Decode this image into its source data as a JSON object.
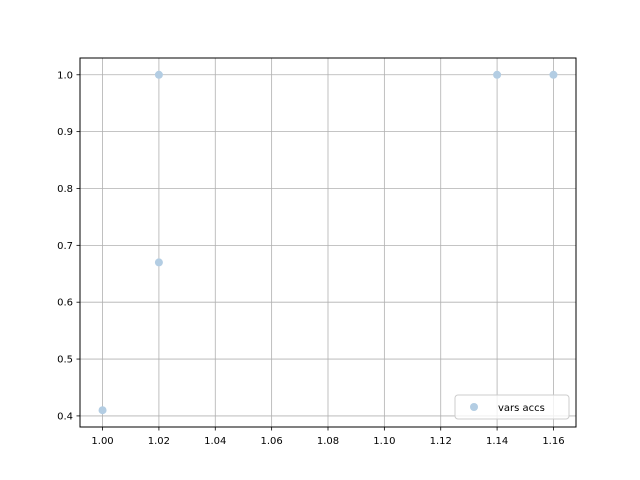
{
  "chart_data": {
    "type": "scatter",
    "title": "",
    "xlabel": "",
    "ylabel": "",
    "xlim": [
      0.992,
      1.168
    ],
    "ylim": [
      0.3805,
      1.0295
    ],
    "xticks": [
      "1.00",
      "1.02",
      "1.04",
      "1.06",
      "1.08",
      "1.10",
      "1.12",
      "1.14",
      "1.16"
    ],
    "xtick_values": [
      1.0,
      1.02,
      1.04,
      1.06,
      1.08,
      1.1,
      1.12,
      1.14,
      1.16
    ],
    "yticks": [
      "0.4",
      "0.5",
      "0.6",
      "0.7",
      "0.8",
      "0.9",
      "1.0"
    ],
    "ytick_values": [
      0.4,
      0.5,
      0.6,
      0.7,
      0.8,
      0.9,
      1.0
    ],
    "grid": true,
    "legend_position": "lower-right",
    "series": [
      {
        "name": "vars accs",
        "color": "#b3cde3",
        "x": [
          1.0,
          1.02,
          1.02,
          1.14,
          1.16
        ],
        "y": [
          0.41,
          0.67,
          1.0,
          1.0,
          1.0
        ]
      }
    ]
  }
}
